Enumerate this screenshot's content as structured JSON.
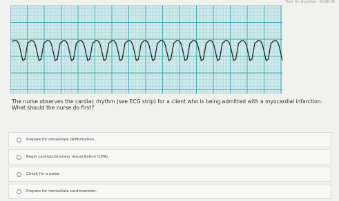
{
  "header": {
    "timer_label": "Time On Question:",
    "timer": "00:00:08"
  },
  "question": "The nurse observes the cardiac rhythm (see ECG strip) for a client who is being admitted with a myocardial infarction. What should the nurse do first?",
  "options": [
    "Prepare for immediate defibrillation.",
    "Begin cardiopulmonary resuscitation (CPR).",
    "Check for a pulse.",
    "Prepare for immediate cardioversion."
  ]
}
